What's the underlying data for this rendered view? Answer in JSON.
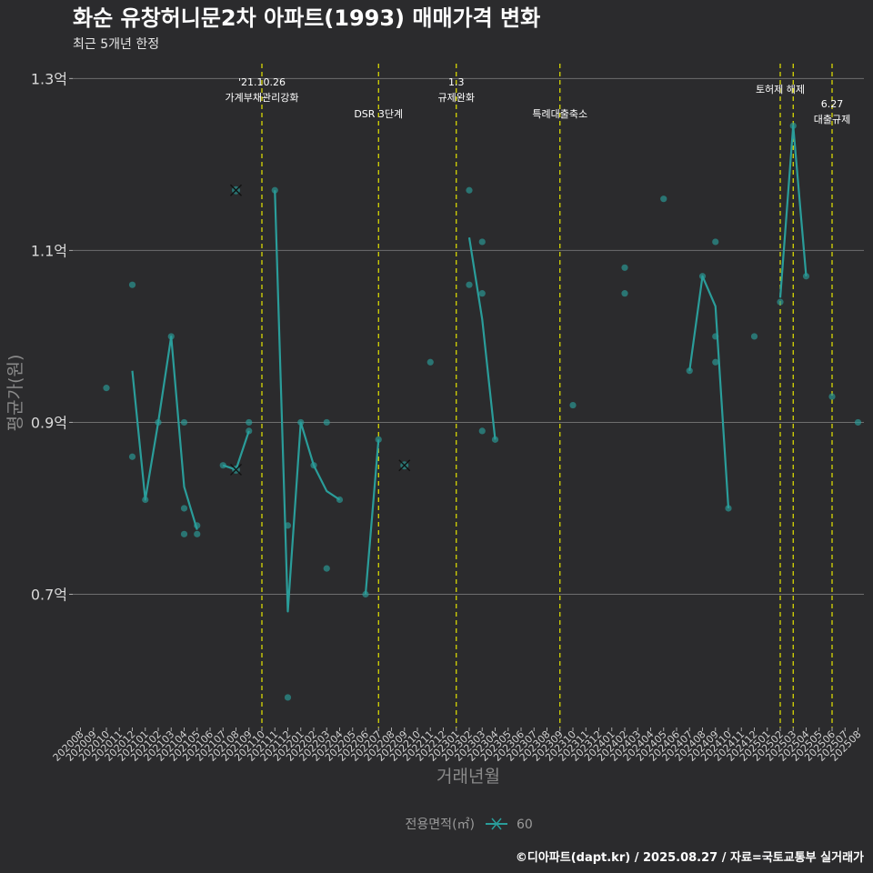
{
  "chart_data": {
    "type": "line",
    "title": "화순 유창허니문2차 아파트(1993) 매매가격 변화",
    "subtitle": "최근 5개년 한정",
    "xlabel": "거래년월",
    "ylabel": "평균가(원)",
    "ylim": [
      0.545,
      1.33
    ],
    "y_ticks": [
      {
        "value": 0.7,
        "label": "0.7억"
      },
      {
        "value": 0.9,
        "label": "0.9억"
      },
      {
        "value": 1.1,
        "label": "1.1억"
      },
      {
        "value": 1.3,
        "label": "1.3억"
      }
    ],
    "categories": [
      "202008",
      "202009",
      "202010",
      "202011",
      "202012",
      "202101",
      "202102",
      "202103",
      "202104",
      "202105",
      "202106",
      "202107",
      "202108",
      "202109",
      "202110",
      "202111",
      "202112",
      "202201",
      "202202",
      "202203",
      "202204",
      "202205",
      "202206",
      "202207",
      "202208",
      "202209",
      "202210",
      "202211",
      "202212",
      "202301",
      "202302",
      "202303",
      "202304",
      "202305",
      "202306",
      "202307",
      "202308",
      "202309",
      "202310",
      "202311",
      "202312",
      "202401",
      "202402",
      "202403",
      "202404",
      "202405",
      "202406",
      "202407",
      "202408",
      "202409",
      "202410",
      "202411",
      "202412",
      "202501",
      "202502",
      "202503",
      "202504",
      "202505",
      "202506",
      "202507",
      "202508"
    ],
    "legend": {
      "title": "전용면적(㎡)",
      "entries": [
        "60"
      ],
      "position": "bottom"
    },
    "series": [
      {
        "name": "60",
        "color": "#2a9d9a",
        "line": [
          {
            "x": "202012",
            "y": 0.96
          },
          {
            "x": "202101",
            "y": 0.81
          },
          {
            "x": "202102",
            "y": 0.9
          },
          {
            "x": "202103",
            "y": 1.0
          },
          {
            "x": "202104",
            "y": 0.825
          },
          {
            "x": "202105",
            "y": 0.775
          },
          {
            "x": null,
            "y": null
          },
          {
            "x": "202107",
            "y": 0.85
          },
          {
            "x": "202108",
            "y": 0.845
          },
          {
            "x": "202109",
            "y": 0.89
          },
          {
            "x": null,
            "y": null
          },
          {
            "x": "202111",
            "y": 1.17
          },
          {
            "x": "202112",
            "y": 0.68
          },
          {
            "x": "202201",
            "y": 0.9
          },
          {
            "x": "202202",
            "y": 0.85
          },
          {
            "x": "202203",
            "y": 0.82
          },
          {
            "x": "202204",
            "y": 0.81
          },
          {
            "x": null,
            "y": null
          },
          {
            "x": "202206",
            "y": 0.7
          },
          {
            "x": "202207",
            "y": 0.88
          },
          {
            "x": null,
            "y": null
          },
          {
            "x": "202302",
            "y": 1.115
          },
          {
            "x": "202303",
            "y": 1.02
          },
          {
            "x": "202304",
            "y": 0.88
          },
          {
            "x": null,
            "y": null
          },
          {
            "x": "202407",
            "y": 0.96
          },
          {
            "x": "202408",
            "y": 1.07
          },
          {
            "x": "202409",
            "y": 1.035
          },
          {
            "x": "202410",
            "y": 0.8
          },
          {
            "x": null,
            "y": null
          },
          {
            "x": "202502",
            "y": 1.045
          },
          {
            "x": "202503",
            "y": 1.245
          },
          {
            "x": "202504",
            "y": 1.07
          }
        ],
        "points": [
          {
            "x": "202010",
            "y": 0.94
          },
          {
            "x": "202012",
            "y": 1.06
          },
          {
            "x": "202012",
            "y": 0.86
          },
          {
            "x": "202101",
            "y": 0.81
          },
          {
            "x": "202102",
            "y": 0.9
          },
          {
            "x": "202103",
            "y": 1.0
          },
          {
            "x": "202104",
            "y": 0.9
          },
          {
            "x": "202104",
            "y": 0.8
          },
          {
            "x": "202104",
            "y": 0.77
          },
          {
            "x": "202105",
            "y": 0.78
          },
          {
            "x": "202105",
            "y": 0.77
          },
          {
            "x": "202107",
            "y": 0.85
          },
          {
            "x": "202109",
            "y": 0.9
          },
          {
            "x": "202109",
            "y": 0.89
          },
          {
            "x": "202111",
            "y": 1.17
          },
          {
            "x": "202112",
            "y": 0.78
          },
          {
            "x": "202112",
            "y": 0.58
          },
          {
            "x": "202201",
            "y": 0.9
          },
          {
            "x": "202202",
            "y": 0.85
          },
          {
            "x": "202203",
            "y": 0.9
          },
          {
            "x": "202203",
            "y": 0.73
          },
          {
            "x": "202204",
            "y": 0.81
          },
          {
            "x": "202206",
            "y": 0.7
          },
          {
            "x": "202207",
            "y": 0.88
          },
          {
            "x": "202211",
            "y": 0.97
          },
          {
            "x": "202302",
            "y": 1.17
          },
          {
            "x": "202302",
            "y": 1.06
          },
          {
            "x": "202303",
            "y": 1.11
          },
          {
            "x": "202303",
            "y": 1.05
          },
          {
            "x": "202303",
            "y": 0.89
          },
          {
            "x": "202304",
            "y": 0.88
          },
          {
            "x": "202310",
            "y": 0.92
          },
          {
            "x": "202402",
            "y": 1.08
          },
          {
            "x": "202402",
            "y": 1.05
          },
          {
            "x": "202405",
            "y": 1.16
          },
          {
            "x": "202407",
            "y": 0.96
          },
          {
            "x": "202408",
            "y": 1.07
          },
          {
            "x": "202409",
            "y": 1.11
          },
          {
            "x": "202409",
            "y": 1.0
          },
          {
            "x": "202409",
            "y": 0.97
          },
          {
            "x": "202410",
            "y": 0.8
          },
          {
            "x": "202412",
            "y": 1.0
          },
          {
            "x": "202502",
            "y": 1.04
          },
          {
            "x": "202503",
            "y": 1.245
          },
          {
            "x": "202504",
            "y": 1.07
          },
          {
            "x": "202506",
            "y": 0.93
          },
          {
            "x": "202508",
            "y": 0.9
          }
        ],
        "cross_points": [
          {
            "x": "202108",
            "y": 1.17
          },
          {
            "x": "202108",
            "y": 0.845
          },
          {
            "x": "202209",
            "y": 0.85
          }
        ]
      }
    ],
    "events": [
      {
        "x": "202110",
        "lines": [
          "'21.10.26",
          "가계부채관리강화"
        ],
        "level": "high"
      },
      {
        "x": "202207",
        "lines": [
          "DSR 3단계"
        ],
        "level": "low"
      },
      {
        "x": "202301",
        "lines": [
          "1.3",
          "규제완화"
        ],
        "level": "high"
      },
      {
        "x": "202309",
        "lines": [
          "특례대출축소"
        ],
        "level": "low"
      },
      {
        "x": "202502",
        "lines": [
          "토허제 해제"
        ],
        "level": "mid"
      },
      {
        "x": "202503",
        "lines": [],
        "level": "none"
      },
      {
        "x": "202506",
        "lines": [
          "6.27",
          "대출규제"
        ],
        "level": "low2"
      }
    ],
    "grid": true,
    "caption": "©디아파트(dapt.kr) / 2025.08.27 / 자료=국토교통부 실거래가"
  }
}
